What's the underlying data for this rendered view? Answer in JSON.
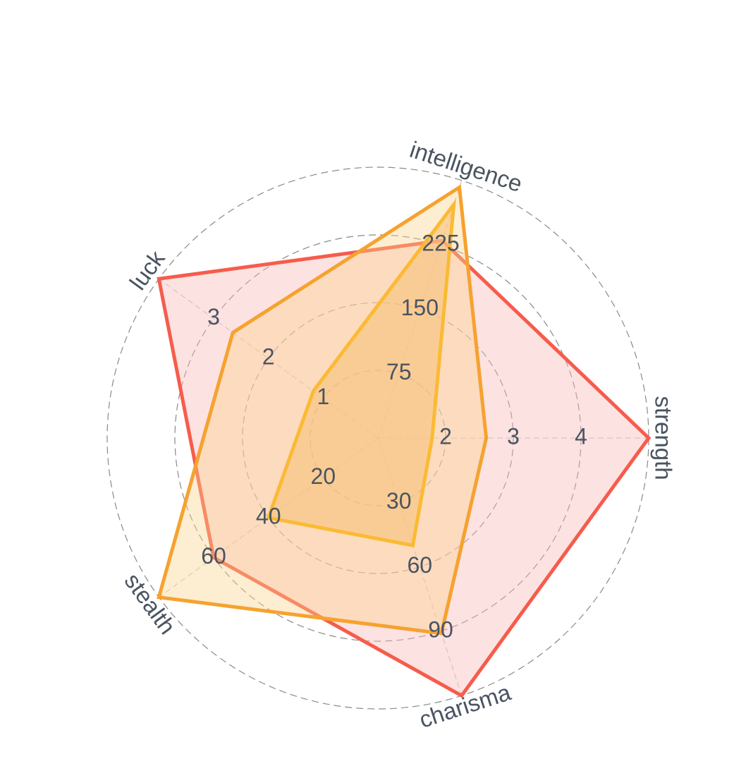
{
  "chart_data": {
    "type": "radar",
    "axes": [
      "strength",
      "charisma",
      "stealth",
      "luck",
      "intelligence"
    ],
    "axis_ticks": {
      "strength": [
        "2",
        "3",
        "4"
      ],
      "charisma": [
        "30",
        "60",
        "90"
      ],
      "stealth": [
        "20",
        "40",
        "60"
      ],
      "luck": [
        "1",
        "2",
        "3"
      ],
      "intelligence": [
        "75",
        "150",
        "225"
      ]
    },
    "axis_ranges": {
      "strength": [
        1,
        5
      ],
      "charisma": [
        0,
        120
      ],
      "stealth": [
        0,
        80
      ],
      "luck": [
        0,
        4
      ],
      "intelligence": [
        0,
        300
      ]
    },
    "grid": true,
    "grid_style": "dashed",
    "series": [
      {
        "values": {
          "strength": 5,
          "charisma": 120,
          "stealth": 60,
          "luck": 4.0,
          "intelligence": 230
        },
        "stroke": "#f65c4c",
        "fill": "#fbb6b6",
        "fill_opacity": 0.4
      },
      {
        "values": {
          "strength": 2.6,
          "charisma": 91,
          "stealth": 80,
          "luck": 2.65,
          "intelligence": 292
        },
        "stroke": "#f6a22f",
        "fill": "#fbd38b",
        "fill_opacity": 0.4
      },
      {
        "values": {
          "strength": 1.8,
          "charisma": 50,
          "stealth": 40,
          "luck": 1.18,
          "intelligence": 272
        },
        "stroke": "#fbba33",
        "fill": "#f8c27a",
        "fill_opacity": 0.6
      }
    ]
  }
}
